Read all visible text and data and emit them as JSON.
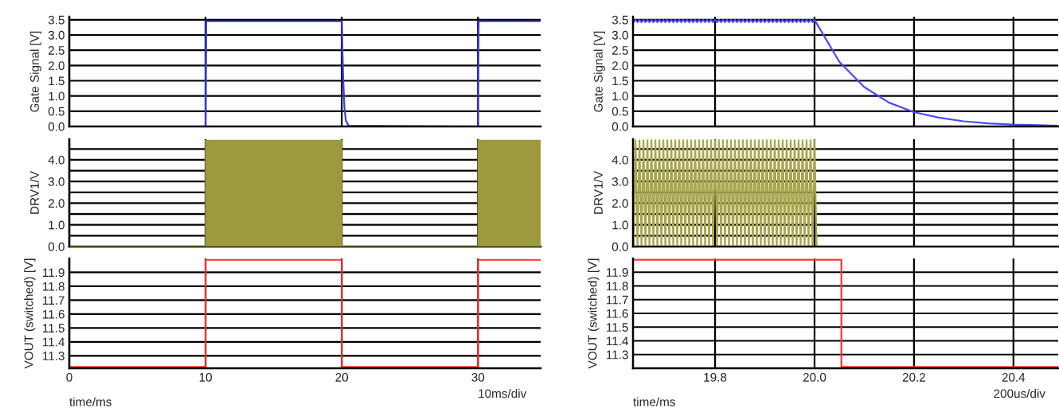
{
  "chart_data": [
    {
      "type": "line",
      "ylabel": "Gate Signal [V]",
      "xlim": [
        0,
        34.6
      ],
      "xticks": [
        0,
        10,
        20,
        30
      ],
      "ylim": [
        0,
        3.6
      ],
      "yticks": [
        {
          "value": 0,
          "label": "0.0"
        },
        {
          "value": 0.5,
          "label": "0.5"
        },
        {
          "value": 1,
          "label": "1.0"
        },
        {
          "value": 1.5,
          "label": "1.5"
        },
        {
          "value": 2,
          "label": "2.0"
        },
        {
          "value": 2.5,
          "label": "2.5"
        },
        {
          "value": 3,
          "label": "3.0"
        },
        {
          "value": 3.5,
          "label": "3.5"
        }
      ],
      "tick_labels": "y",
      "grid": true,
      "series": [
        {
          "color": "#3a3af5",
          "x": [
            0,
            10,
            10.05,
            20,
            20.1,
            20.2,
            20.3,
            20.5,
            30,
            30.05,
            34.6
          ],
          "values": [
            0,
            0,
            3.45,
            3.45,
            1.6,
            0.6,
            0.2,
            0.02,
            0,
            3.45,
            3.45
          ]
        }
      ]
    },
    {
      "type": "area",
      "ylabel": "DRV1/V",
      "xlim": [
        0,
        34.6
      ],
      "xticks": [
        0,
        10,
        20,
        30
      ],
      "ylim": [
        0,
        4.95
      ],
      "yticks": [
        {
          "value": 0,
          "label": "0.0"
        },
        {
          "value": 0.5,
          "label": null
        },
        {
          "value": 1,
          "label": "1.0"
        },
        {
          "value": 1.5,
          "label": null
        },
        {
          "value": 2,
          "label": "2.0"
        },
        {
          "value": 2.5,
          "label": null
        },
        {
          "value": 3,
          "label": "3.0"
        },
        {
          "value": 3.5,
          "label": null
        },
        {
          "value": 4,
          "label": "4.0"
        },
        {
          "value": 4.5,
          "label": null
        }
      ],
      "tick_labels": "y",
      "grid": true,
      "series": [
        {
          "color": "#9c9a3c",
          "x": [
            0,
            10,
            10,
            20,
            20,
            30,
            30,
            34.6
          ],
          "values": [
            0,
            0,
            4.9,
            4.9,
            0,
            0,
            4.9,
            4.9
          ]
        }
      ]
    },
    {
      "type": "step",
      "ylabel": "VOUT (switched) [V]",
      "xlabel": "time/ms",
      "annotations": [
        "10ms/div"
      ],
      "xlim": [
        0,
        34.6
      ],
      "xticks": [
        0,
        10,
        20,
        30
      ],
      "ylim": [
        11.21,
        12.0
      ],
      "yticks": [
        11.3,
        11.4,
        11.5,
        11.6,
        11.7,
        11.8,
        11.9
      ],
      "grid": true,
      "series": [
        {
          "color": "#ff3333",
          "x": [
            0,
            10,
            20,
            30,
            34.6
          ],
          "values": [
            11.22,
            11.99,
            11.22,
            11.99,
            11.99
          ]
        }
      ]
    },
    {
      "type": "line",
      "ylabel": "Gate Signal [V]",
      "xlim": [
        19.635,
        20.49
      ],
      "xticks": [
        19.8,
        20,
        20.2,
        20.4
      ],
      "ylim": [
        0,
        3.6
      ],
      "yticks": [
        {
          "value": 0,
          "label": "0.0"
        },
        {
          "value": 0.5,
          "label": "0.5"
        },
        {
          "value": 1,
          "label": "1.0"
        },
        {
          "value": 1.5,
          "label": "1.5"
        },
        {
          "value": 2,
          "label": "2.0"
        },
        {
          "value": 2.5,
          "label": "2.5"
        },
        {
          "value": 3,
          "label": "3.0"
        },
        {
          "value": 3.5,
          "label": "3.5"
        }
      ],
      "tick_labels": "y",
      "grid": true,
      "series": [
        {
          "color": "#4a4af8",
          "x": [
            19.636,
            19.64,
            19.644,
            19.648,
            19.652,
            19.656,
            19.66,
            19.664,
            19.668,
            19.672,
            19.676,
            19.68,
            19.684,
            19.688,
            19.692,
            19.696,
            19.7,
            19.704,
            19.708,
            19.712,
            19.716,
            19.72,
            19.724,
            19.728,
            19.732,
            19.736,
            19.74,
            19.744,
            19.748,
            19.752,
            19.756,
            19.76,
            19.764,
            19.768,
            19.772,
            19.776,
            19.78,
            19.784,
            19.788,
            19.792,
            19.796,
            19.8,
            19.804,
            19.808,
            19.812,
            19.816,
            19.82,
            19.824,
            19.828,
            19.832,
            19.836,
            19.84,
            19.844,
            19.848,
            19.852,
            19.856,
            19.86,
            19.864,
            19.868,
            19.872,
            19.876,
            19.88,
            19.884,
            19.888,
            19.892,
            19.896,
            19.9,
            19.904,
            19.908,
            19.912,
            19.916,
            19.92,
            19.924,
            19.928,
            19.932,
            19.936,
            19.94,
            19.944,
            19.948,
            19.952,
            19.956,
            19.96,
            19.964,
            19.968,
            19.972,
            19.976,
            19.98,
            19.984,
            19.988,
            19.992,
            19.996,
            20.0,
            20.05,
            20.1,
            20.15,
            20.2,
            20.25,
            20.3,
            20.35,
            20.4,
            20.45,
            20.49
          ],
          "values": [
            3.42,
            3.5,
            3.42,
            3.5,
            3.42,
            3.5,
            3.42,
            3.5,
            3.42,
            3.5,
            3.42,
            3.5,
            3.42,
            3.5,
            3.42,
            3.5,
            3.42,
            3.5,
            3.42,
            3.5,
            3.42,
            3.5,
            3.42,
            3.5,
            3.42,
            3.5,
            3.42,
            3.5,
            3.42,
            3.5,
            3.42,
            3.5,
            3.42,
            3.5,
            3.42,
            3.5,
            3.42,
            3.5,
            3.42,
            3.5,
            3.42,
            3.5,
            3.42,
            3.5,
            3.42,
            3.5,
            3.42,
            3.5,
            3.42,
            3.5,
            3.42,
            3.5,
            3.42,
            3.5,
            3.42,
            3.5,
            3.42,
            3.5,
            3.42,
            3.5,
            3.42,
            3.5,
            3.42,
            3.5,
            3.42,
            3.5,
            3.42,
            3.5,
            3.42,
            3.5,
            3.42,
            3.5,
            3.42,
            3.5,
            3.42,
            3.5,
            3.42,
            3.5,
            3.42,
            3.5,
            3.42,
            3.5,
            3.42,
            3.5,
            3.42,
            3.5,
            3.42,
            3.5,
            3.42,
            3.5,
            3.42,
            3.5,
            2.12,
            1.29,
            0.78,
            0.47,
            0.29,
            0.17,
            0.1,
            0.06,
            0.04,
            0.02
          ]
        }
      ]
    },
    {
      "type": "line",
      "ylabel": "DRV1/V",
      "xlim": [
        19.635,
        20.49
      ],
      "xticks": [
        19.8,
        20,
        20.2,
        20.4
      ],
      "ylim": [
        0,
        4.95
      ],
      "yticks": [
        {
          "value": 0,
          "label": "0.0"
        },
        {
          "value": 0.5,
          "label": null
        },
        {
          "value": 1,
          "label": "1.0"
        },
        {
          "value": 1.5,
          "label": null
        },
        {
          "value": 2,
          "label": "2.0"
        },
        {
          "value": 2.5,
          "label": null
        },
        {
          "value": 3,
          "label": "3.0"
        },
        {
          "value": 3.5,
          "label": null
        },
        {
          "value": 4,
          "label": "4.0"
        },
        {
          "value": 4.5,
          "label": null
        }
      ],
      "tick_labels": "y",
      "grid": true,
      "series": [
        {
          "color": "#a8a64c",
          "x": [
            19.636,
            19.64,
            19.644,
            19.648,
            19.652,
            19.656,
            19.66,
            19.664,
            19.668,
            19.672,
            19.676,
            19.68,
            19.684,
            19.688,
            19.692,
            19.696,
            19.7,
            19.704,
            19.708,
            19.712,
            19.716,
            19.72,
            19.724,
            19.728,
            19.732,
            19.736,
            19.74,
            19.744,
            19.748,
            19.752,
            19.756,
            19.76,
            19.764,
            19.768,
            19.772,
            19.776,
            19.78,
            19.784,
            19.788,
            19.792,
            19.796,
            19.8,
            19.804,
            19.808,
            19.812,
            19.816,
            19.82,
            19.824,
            19.828,
            19.832,
            19.836,
            19.84,
            19.844,
            19.848,
            19.852,
            19.856,
            19.86,
            19.864,
            19.868,
            19.872,
            19.876,
            19.88,
            19.884,
            19.888,
            19.892,
            19.896,
            19.9,
            19.904,
            19.908,
            19.912,
            19.916,
            19.92,
            19.924,
            19.928,
            19.932,
            19.936,
            19.94,
            19.944,
            19.948,
            19.952,
            19.956,
            19.96,
            19.964,
            19.968,
            19.972,
            19.976,
            19.98,
            19.984,
            19.988,
            19.992,
            19.996,
            20.0,
            20.004,
            20.49
          ],
          "values": [
            0,
            4.9,
            0,
            4.9,
            0,
            4.9,
            0,
            4.9,
            0,
            4.9,
            0,
            4.9,
            0,
            4.9,
            0,
            4.9,
            0,
            4.9,
            0,
            4.9,
            0,
            4.9,
            0,
            4.9,
            0,
            4.9,
            0,
            4.9,
            0,
            4.9,
            0,
            4.9,
            0,
            4.9,
            0,
            4.9,
            0,
            4.9,
            0,
            4.9,
            0,
            4.9,
            0,
            4.9,
            0,
            4.9,
            0,
            4.9,
            0,
            4.9,
            0,
            4.9,
            0,
            4.9,
            0,
            4.9,
            0,
            4.9,
            0,
            4.9,
            0,
            4.9,
            0,
            4.9,
            0,
            4.9,
            0,
            4.9,
            0,
            4.9,
            0,
            4.9,
            0,
            4.9,
            0,
            4.9,
            0,
            4.9,
            0,
            4.9,
            0,
            4.9,
            0,
            4.9,
            0,
            4.9,
            0,
            4.9,
            0,
            4.9,
            0,
            4.9,
            0,
            0
          ]
        }
      ]
    },
    {
      "type": "step",
      "ylabel": "VOUT (switched) [V]",
      "xlabel": "time/ms",
      "annotations": [
        "200us/div"
      ],
      "xlim": [
        19.635,
        20.49
      ],
      "xticks": [
        19.8,
        {
          "value": 20,
          "label": "20.0"
        },
        20.2,
        20.4
      ],
      "ylim": [
        11.2,
        12.0
      ],
      "yticks": [
        11.3,
        11.4,
        11.5,
        11.6,
        11.7,
        11.8,
        11.9
      ],
      "grid": true,
      "series": [
        {
          "color": "#ff3333",
          "x": [
            19.635,
            20.054,
            20.49
          ],
          "values": [
            11.99,
            11.21,
            11.21
          ]
        }
      ]
    }
  ]
}
